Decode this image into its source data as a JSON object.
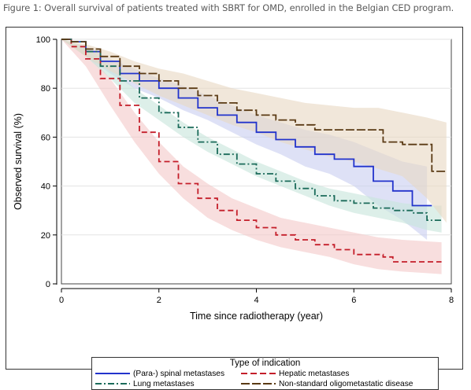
{
  "caption": "Figure 1: Overall survival of patients treated with SBRT for OMD, enrolled in the Belgian CED program.",
  "chart_data": {
    "type": "line",
    "step": true,
    "xlabel": "Time since radiotherapy (year)",
    "ylabel": "Observed survival (%)",
    "xlim": [
      0,
      8
    ],
    "ylim": [
      0,
      100
    ],
    "xticks": [
      0,
      2,
      4,
      6,
      8
    ],
    "yticks": [
      0,
      20,
      40,
      60,
      80,
      100
    ],
    "grid": "horizontal",
    "confidence_bands": true,
    "legend": {
      "title": "Type of indication",
      "placement": "bottom",
      "columns": 2
    },
    "series": [
      {
        "name": "(Para-) spinal metastases",
        "color": "#2233cc",
        "band_color": "#c9cff0",
        "dash": "solid",
        "points": [
          [
            0,
            100
          ],
          [
            0.2,
            99
          ],
          [
            0.5,
            95
          ],
          [
            0.8,
            91
          ],
          [
            1.2,
            86
          ],
          [
            1.6,
            83
          ],
          [
            2,
            80
          ],
          [
            2.4,
            76
          ],
          [
            2.8,
            72
          ],
          [
            3.2,
            69
          ],
          [
            3.6,
            66
          ],
          [
            4,
            62
          ],
          [
            4.4,
            59
          ],
          [
            4.8,
            56
          ],
          [
            5.2,
            53
          ],
          [
            5.6,
            51
          ],
          [
            6,
            48
          ],
          [
            6.4,
            42
          ],
          [
            6.8,
            38
          ],
          [
            7.2,
            32
          ],
          [
            7.6,
            32
          ]
        ],
        "band_upper": [
          [
            0,
            100
          ],
          [
            0.5,
            97
          ],
          [
            1,
            92
          ],
          [
            1.5,
            88
          ],
          [
            2,
            84
          ],
          [
            2.5,
            81
          ],
          [
            3,
            77
          ],
          [
            3.5,
            73
          ],
          [
            4,
            69
          ],
          [
            4.5,
            66
          ],
          [
            5,
            63
          ],
          [
            5.5,
            61
          ],
          [
            6,
            58
          ],
          [
            6.5,
            54
          ],
          [
            7,
            50
          ],
          [
            7.5,
            48
          ]
        ],
        "band_lower": [
          [
            0,
            100
          ],
          [
            0.5,
            93
          ],
          [
            1,
            86
          ],
          [
            1.5,
            80
          ],
          [
            2,
            76
          ],
          [
            2.5,
            71
          ],
          [
            3,
            67
          ],
          [
            3.5,
            62
          ],
          [
            4,
            57
          ],
          [
            4.5,
            53
          ],
          [
            5,
            48
          ],
          [
            5.5,
            45
          ],
          [
            6,
            40
          ],
          [
            6.5,
            32
          ],
          [
            7,
            26
          ],
          [
            7.5,
            18
          ]
        ]
      },
      {
        "name": "Hepatic metastases",
        "color": "#c41e2a",
        "band_color": "#f4caca",
        "dash": "dash",
        "points": [
          [
            0,
            100
          ],
          [
            0.2,
            97
          ],
          [
            0.5,
            92
          ],
          [
            0.8,
            84
          ],
          [
            1.2,
            73
          ],
          [
            1.6,
            62
          ],
          [
            2,
            50
          ],
          [
            2.4,
            41
          ],
          [
            2.8,
            35
          ],
          [
            3.2,
            30
          ],
          [
            3.6,
            26
          ],
          [
            4,
            23
          ],
          [
            4.4,
            20
          ],
          [
            4.8,
            18
          ],
          [
            5.2,
            16
          ],
          [
            5.6,
            14
          ],
          [
            6,
            12
          ],
          [
            6.6,
            11
          ],
          [
            6.8,
            9
          ],
          [
            7.8,
            9
          ]
        ],
        "band_upper": [
          [
            0,
            100
          ],
          [
            0.5,
            95
          ],
          [
            1,
            84
          ],
          [
            1.5,
            70
          ],
          [
            2,
            58
          ],
          [
            2.5,
            48
          ],
          [
            3,
            41
          ],
          [
            3.5,
            35
          ],
          [
            4,
            31
          ],
          [
            4.5,
            27
          ],
          [
            5,
            25
          ],
          [
            5.5,
            23
          ],
          [
            6,
            21
          ],
          [
            6.5,
            19
          ],
          [
            7,
            18
          ],
          [
            7.8,
            17
          ]
        ],
        "band_lower": [
          [
            0,
            100
          ],
          [
            0.5,
            89
          ],
          [
            1,
            73
          ],
          [
            1.5,
            58
          ],
          [
            2,
            45
          ],
          [
            2.5,
            35
          ],
          [
            3,
            27
          ],
          [
            3.5,
            22
          ],
          [
            4,
            18
          ],
          [
            4.5,
            15
          ],
          [
            5,
            13
          ],
          [
            5.5,
            11
          ],
          [
            6,
            8
          ],
          [
            6.5,
            6
          ],
          [
            7,
            5
          ],
          [
            7.8,
            4
          ]
        ]
      },
      {
        "name": "Lung metastases",
        "color": "#1b6b5a",
        "band_color": "#c8e5dc",
        "dash": "dashdot",
        "points": [
          [
            0,
            100
          ],
          [
            0.2,
            99
          ],
          [
            0.5,
            95
          ],
          [
            0.8,
            89
          ],
          [
            1.2,
            83
          ],
          [
            1.6,
            76
          ],
          [
            2,
            70
          ],
          [
            2.4,
            64
          ],
          [
            2.8,
            58
          ],
          [
            3.2,
            53
          ],
          [
            3.6,
            49
          ],
          [
            4,
            45
          ],
          [
            4.4,
            42
          ],
          [
            4.8,
            39
          ],
          [
            5.2,
            36
          ],
          [
            5.6,
            34
          ],
          [
            6,
            33
          ],
          [
            6.4,
            31
          ],
          [
            6.8,
            30
          ],
          [
            7.2,
            29
          ],
          [
            7.5,
            26
          ],
          [
            7.8,
            26
          ]
        ],
        "band_upper": [
          [
            0,
            100
          ],
          [
            0.5,
            97
          ],
          [
            1,
            89
          ],
          [
            1.5,
            80
          ],
          [
            2,
            73
          ],
          [
            2.5,
            66
          ],
          [
            3,
            60
          ],
          [
            3.5,
            55
          ],
          [
            4,
            50
          ],
          [
            4.5,
            46
          ],
          [
            5,
            42
          ],
          [
            5.5,
            39
          ],
          [
            6,
            37
          ],
          [
            6.5,
            35
          ],
          [
            7,
            33
          ],
          [
            7.5,
            32
          ],
          [
            7.8,
            32
          ]
        ],
        "band_lower": [
          [
            0,
            100
          ],
          [
            0.5,
            93
          ],
          [
            1,
            84
          ],
          [
            1.5,
            74
          ],
          [
            2,
            67
          ],
          [
            2.5,
            60
          ],
          [
            3,
            54
          ],
          [
            3.5,
            49
          ],
          [
            4,
            44
          ],
          [
            4.5,
            40
          ],
          [
            5,
            36
          ],
          [
            5.5,
            32
          ],
          [
            6,
            29
          ],
          [
            6.5,
            27
          ],
          [
            7,
            25
          ],
          [
            7.5,
            22
          ],
          [
            7.8,
            21
          ]
        ]
      },
      {
        "name": "Non-standard oligometastatic disease",
        "color": "#5a3a14",
        "band_color": "#e8d8c3",
        "dash": "longdash",
        "points": [
          [
            0,
            100
          ],
          [
            0.2,
            99
          ],
          [
            0.5,
            96
          ],
          [
            0.8,
            93
          ],
          [
            1.2,
            89
          ],
          [
            1.6,
            86
          ],
          [
            2,
            83
          ],
          [
            2.4,
            80
          ],
          [
            2.8,
            77
          ],
          [
            3.2,
            74
          ],
          [
            3.6,
            71
          ],
          [
            4,
            69
          ],
          [
            4.4,
            67
          ],
          [
            4.8,
            65
          ],
          [
            5.2,
            63
          ],
          [
            5.6,
            63
          ],
          [
            6,
            63
          ],
          [
            6.4,
            63
          ],
          [
            6.6,
            58
          ],
          [
            7,
            57
          ],
          [
            7.4,
            57
          ],
          [
            7.6,
            46
          ],
          [
            7.9,
            46
          ]
        ],
        "band_upper": [
          [
            0,
            100
          ],
          [
            0.5,
            98
          ],
          [
            1,
            95
          ],
          [
            1.5,
            91
          ],
          [
            2,
            88
          ],
          [
            2.5,
            86
          ],
          [
            3,
            83
          ],
          [
            3.5,
            80
          ],
          [
            4,
            78
          ],
          [
            4.5,
            76
          ],
          [
            5,
            74
          ],
          [
            5.5,
            73
          ],
          [
            6,
            72
          ],
          [
            6.5,
            72
          ],
          [
            7,
            70
          ],
          [
            7.5,
            68
          ],
          [
            7.9,
            66
          ]
        ],
        "band_lower": [
          [
            0,
            100
          ],
          [
            0.5,
            93
          ],
          [
            1,
            87
          ],
          [
            1.5,
            82
          ],
          [
            2,
            77
          ],
          [
            2.5,
            73
          ],
          [
            3,
            69
          ],
          [
            3.5,
            65
          ],
          [
            4,
            62
          ],
          [
            4.5,
            58
          ],
          [
            5,
            55
          ],
          [
            5.5,
            52
          ],
          [
            6,
            50
          ],
          [
            6.5,
            47
          ],
          [
            7,
            44
          ],
          [
            7.5,
            35
          ],
          [
            7.9,
            25
          ]
        ]
      }
    ]
  }
}
